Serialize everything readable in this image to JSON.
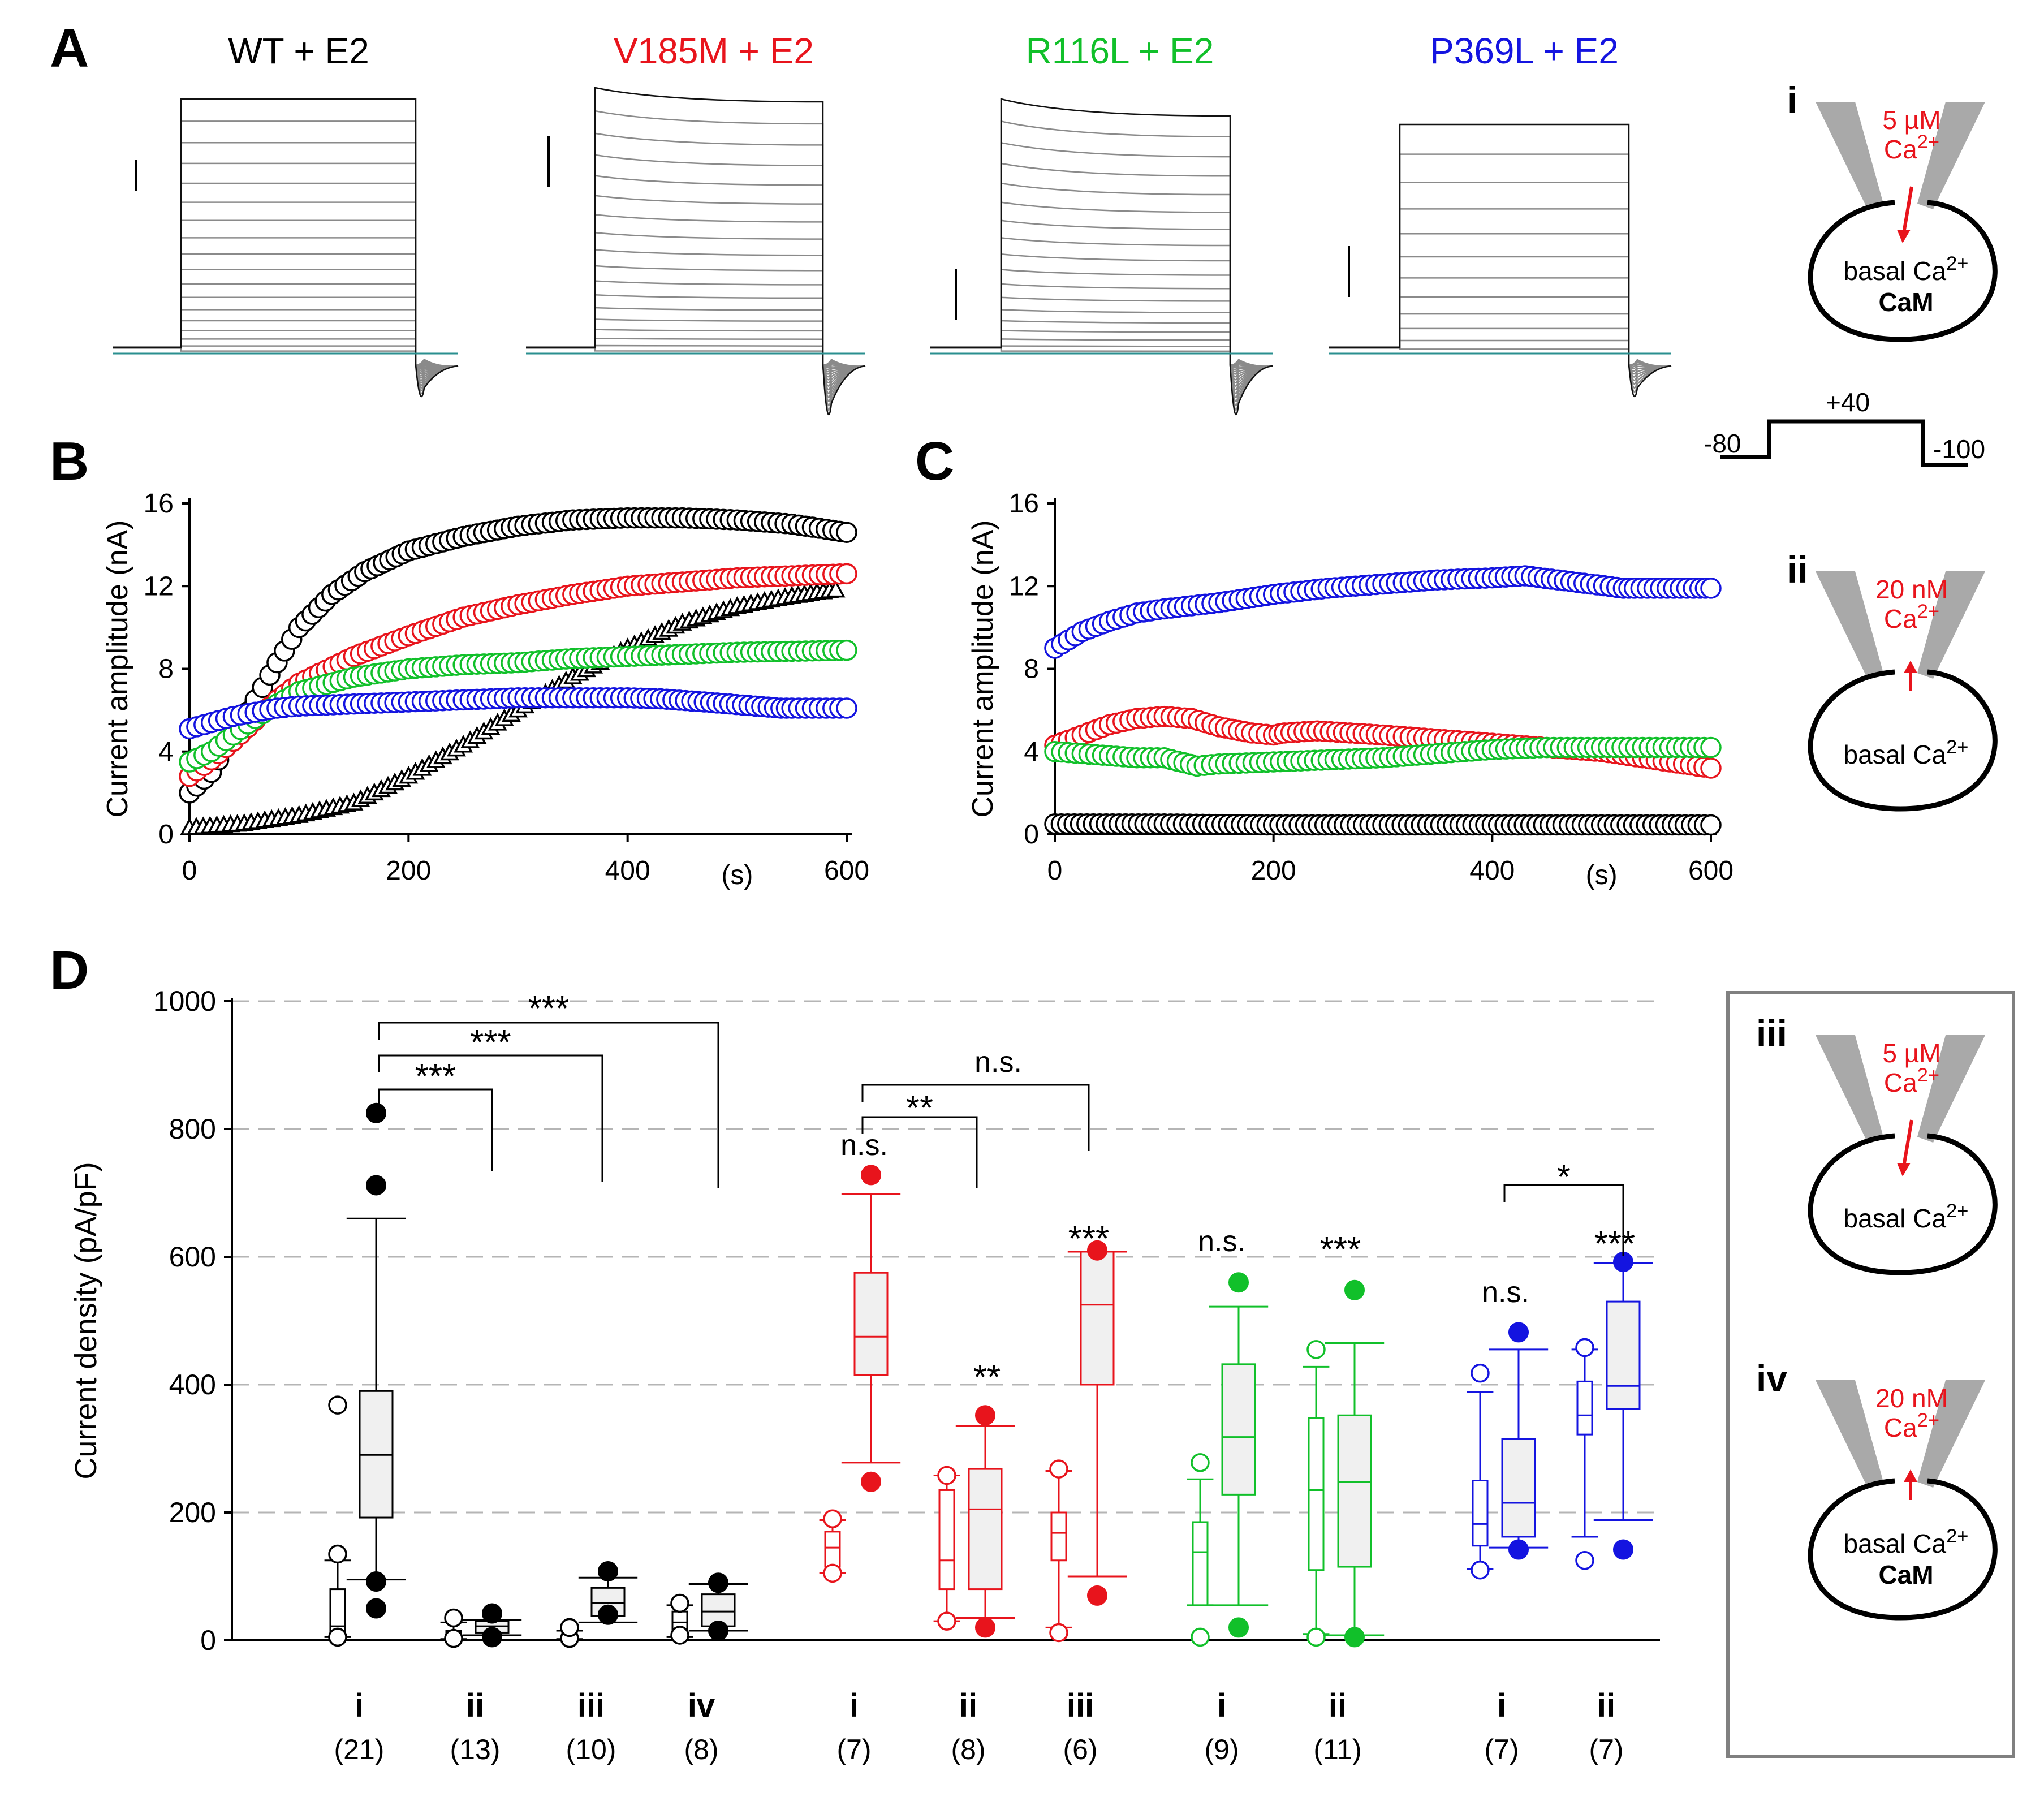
{
  "colors": {
    "wt": "#000000",
    "v185m": "#e8141c",
    "r116l": "#11c02a",
    "p369l": "#1414e0",
    "baseline": "#2a8f8f",
    "trace": "#8a8a8a",
    "pipette": "#a9a9a9",
    "grid": "#b5b5b5"
  },
  "panel_labels": {
    "a": "A",
    "b": "B",
    "c": "C",
    "d": "D"
  },
  "panelA": {
    "titles": [
      "WT + E2",
      "V185M + E2",
      "R116L + E2",
      "P369L + E2"
    ]
  },
  "schematics": {
    "i": {
      "label": "i",
      "conc": "5 µM",
      "ion": "Ca2+",
      "inside": "basal Ca2+",
      "cam": "CaM"
    },
    "ii": {
      "label": "ii",
      "conc": "20 nM",
      "ion": "Ca2+",
      "inside": "basal Ca2+"
    },
    "iii": {
      "label": "iii",
      "conc": "5 µM",
      "ion": "Ca2+",
      "inside": "basal Ca2+"
    },
    "iv": {
      "label": "iv",
      "conc": "20 nM",
      "ion": "Ca2+",
      "inside": "basal Ca2+",
      "cam": "CaM"
    }
  },
  "protocol": {
    "hold": "-80",
    "step": "+40",
    "tail": "-100"
  },
  "chart_data": [
    {
      "panel": "B",
      "type": "scatter",
      "ylabel": "Current amplitude (nA)",
      "xunit": "(s)",
      "xlim": [
        0,
        600
      ],
      "ylim": [
        0,
        16
      ],
      "xticks": [
        "0",
        "200",
        "400",
        "600"
      ],
      "yticks": [
        "0",
        "4",
        "8",
        "12",
        "16"
      ],
      "series": [
        {
          "name": "WT",
          "color": "black",
          "marker": "circle",
          "x": [
            0,
            20,
            40,
            60,
            80,
            100,
            130,
            160,
            200,
            250,
            300,
            350,
            400,
            450,
            500,
            550,
            600
          ],
          "y": [
            2,
            3,
            4.8,
            6.5,
            8.3,
            10,
            11.6,
            12.7,
            13.7,
            14.4,
            14.9,
            15.2,
            15.3,
            15.3,
            15.2,
            15,
            14.6
          ]
        },
        {
          "name": "WT (triangles)",
          "color": "black",
          "marker": "triangle",
          "x": [
            0,
            50,
            100,
            150,
            200,
            250,
            300,
            350,
            400,
            450,
            500,
            550,
            590
          ],
          "y": [
            0.3,
            0.5,
            0.9,
            1.5,
            2.8,
            4.3,
            6,
            7.6,
            9,
            10.2,
            11,
            11.5,
            11.8
          ]
        },
        {
          "name": "V185M",
          "color": "red",
          "marker": "circle",
          "x": [
            0,
            20,
            40,
            60,
            80,
            100,
            150,
            200,
            250,
            300,
            350,
            400,
            450,
            500,
            550,
            600
          ],
          "y": [
            2.8,
            3.6,
            4.5,
            5.5,
            6.5,
            7.3,
            8.6,
            9.6,
            10.5,
            11.1,
            11.6,
            12,
            12.2,
            12.4,
            12.5,
            12.6
          ]
        },
        {
          "name": "R116L",
          "color": "green",
          "marker": "circle",
          "x": [
            0,
            20,
            40,
            60,
            80,
            100,
            150,
            200,
            250,
            300,
            350,
            400,
            450,
            500,
            550,
            600
          ],
          "y": [
            3.5,
            4,
            4.8,
            5.6,
            6.3,
            6.9,
            7.6,
            8,
            8.2,
            8.3,
            8.5,
            8.6,
            8.7,
            8.8,
            8.85,
            8.9
          ]
        },
        {
          "name": "P369L",
          "color": "blue",
          "marker": "circle",
          "x": [
            0,
            20,
            40,
            60,
            80,
            100,
            150,
            200,
            250,
            300,
            350,
            400,
            430,
            470,
            540,
            550,
            600
          ],
          "y": [
            5.1,
            5.4,
            5.7,
            5.9,
            6.1,
            6.2,
            6.3,
            6.4,
            6.5,
            6.6,
            6.6,
            6.6,
            6.55,
            6.4,
            6.1,
            6.1,
            6.1
          ]
        }
      ]
    },
    {
      "panel": "C",
      "type": "scatter",
      "ylabel": "Current amplitude (nA)",
      "xunit": "(s)",
      "xlim": [
        0,
        600
      ],
      "ylim": [
        0,
        16
      ],
      "xticks": [
        "0",
        "200",
        "400",
        "600"
      ],
      "yticks": [
        "0",
        "4",
        "8",
        "12",
        "16"
      ],
      "series": [
        {
          "name": "P369L",
          "color": "blue",
          "marker": "circle",
          "x": [
            0,
            25,
            50,
            75,
            100,
            150,
            200,
            250,
            300,
            350,
            400,
            430,
            520,
            530,
            590,
            600
          ],
          "y": [
            9,
            9.8,
            10.3,
            10.7,
            10.9,
            11.2,
            11.6,
            11.9,
            12.1,
            12.3,
            12.4,
            12.5,
            11.9,
            11.9,
            11.9,
            11.9
          ]
        },
        {
          "name": "V185M",
          "color": "red",
          "marker": "circle",
          "x": [
            0,
            25,
            50,
            75,
            100,
            125,
            150,
            180,
            200,
            210,
            240,
            270,
            300,
            350,
            400,
            450,
            500,
            550,
            600
          ],
          "y": [
            4.3,
            4.8,
            5.3,
            5.6,
            5.7,
            5.6,
            5.2,
            4.9,
            4.8,
            4.9,
            5,
            4.9,
            4.8,
            4.6,
            4.4,
            4.2,
            4,
            3.6,
            3.2
          ]
        },
        {
          "name": "R116L",
          "color": "green",
          "marker": "circle",
          "x": [
            0,
            25,
            50,
            75,
            100,
            130,
            150,
            200,
            250,
            300,
            350,
            400,
            450,
            500,
            550,
            600
          ],
          "y": [
            4,
            3.9,
            3.8,
            3.7,
            3.7,
            3.3,
            3.4,
            3.5,
            3.6,
            3.7,
            3.9,
            4.1,
            4.2,
            4.2,
            4.2,
            4.2
          ]
        },
        {
          "name": "WT",
          "color": "black",
          "marker": "circle",
          "x": [
            0,
            100,
            200,
            300,
            400,
            500,
            600
          ],
          "y": [
            0.5,
            0.5,
            0.45,
            0.45,
            0.45,
            0.45,
            0.45
          ]
        }
      ]
    },
    {
      "panel": "D",
      "type": "box",
      "ylabel": "Current density (pA/pF)",
      "ylim": [
        0,
        1000
      ],
      "yticks": [
        "0",
        "200",
        "400",
        "600",
        "800",
        "1000"
      ],
      "groups": [
        {
          "color": "black",
          "label": "i",
          "n": "(21)",
          "box_left": {
            "min": 5,
            "q1": 5,
            "median": 22,
            "q3": 80,
            "max": 125,
            "out_low": 5,
            "out_high": [
              135,
              368
            ]
          },
          "box_right": {
            "min": 95,
            "q1": 192,
            "median": 290,
            "q3": 390,
            "max": 660,
            "out_low": [
              50,
              92
            ],
            "out_high": [
              712,
              825
            ]
          }
        },
        {
          "color": "black",
          "label": "ii",
          "n": "(13)",
          "box_left": {
            "min": 2,
            "q1": 2,
            "median": 8,
            "q3": 15,
            "max": 28,
            "out_low": 3,
            "out_high": [
              35
            ]
          },
          "box_right": {
            "min": 8,
            "q1": 12,
            "median": 22,
            "q3": 30,
            "max": 32,
            "out_low": [
              5
            ],
            "out_high": [
              42
            ]
          }
        },
        {
          "color": "black",
          "label": "iii",
          "n": "(10)",
          "box_left": {
            "min": 2,
            "q1": 2,
            "median": 6,
            "q3": 12,
            "max": 15,
            "out_low": 3,
            "out_high": [
              20
            ]
          },
          "box_right": {
            "min": 28,
            "q1": 38,
            "median": 58,
            "q3": 82,
            "max": 98,
            "out_low": [
              40
            ],
            "out_high": [
              108
            ]
          }
        },
        {
          "color": "black",
          "label": "iv",
          "n": "(8)",
          "box_left": {
            "min": 5,
            "q1": 10,
            "median": 28,
            "q3": 45,
            "max": 55,
            "out_low": 8,
            "out_high": [
              58
            ]
          },
          "box_right": {
            "min": 15,
            "q1": 22,
            "median": 45,
            "q3": 72,
            "max": 88,
            "out_low": [
              15
            ],
            "out_high": [
              90
            ]
          }
        },
        {
          "color": "red",
          "label": "i",
          "n": "(7)",
          "box_left": {
            "min": 105,
            "q1": 115,
            "median": 145,
            "q3": 170,
            "max": 188,
            "out_low": 105,
            "out_high": [
              190
            ]
          },
          "box_right": {
            "min": 278,
            "q1": 415,
            "median": 475,
            "q3": 575,
            "max": 698,
            "out_low": [
              248
            ],
            "out_high": [
              728
            ]
          }
        },
        {
          "color": "red",
          "label": "ii",
          "n": "(8)",
          "box_left": {
            "min": 30,
            "q1": 80,
            "median": 125,
            "q3": 235,
            "max": 258,
            "out_low": 30,
            "out_high": [
              258
            ]
          },
          "box_right": {
            "min": 35,
            "q1": 80,
            "median": 205,
            "q3": 268,
            "max": 335,
            "out_low": [
              20
            ],
            "out_high": [
              352
            ]
          }
        },
        {
          "color": "red",
          "label": "iii",
          "n": "(6)",
          "box_left": {
            "min": 20,
            "q1": 125,
            "median": 168,
            "q3": 200,
            "max": 265,
            "out_low": 12,
            "out_high": [
              268
            ]
          },
          "box_right": {
            "min": 100,
            "q1": 400,
            "median": 525,
            "q3": 608,
            "max": 608,
            "out_low": [
              70
            ],
            "out_high": [
              610
            ]
          }
        },
        {
          "color": "green",
          "label": "i",
          "n": "(9)",
          "box_left": {
            "min": 55,
            "q1": 55,
            "median": 138,
            "q3": 185,
            "max": 252,
            "out_low": 5,
            "out_high": [
              278
            ]
          },
          "box_right": {
            "min": 55,
            "q1": 228,
            "median": 318,
            "q3": 432,
            "max": 522,
            "out_low": [
              20
            ],
            "out_high": [
              560
            ]
          }
        },
        {
          "color": "green",
          "label": "ii",
          "n": "(11)",
          "box_left": {
            "min": 10,
            "q1": 110,
            "median": 235,
            "q3": 348,
            "max": 428,
            "out_low": 5,
            "out_high": [
              455
            ]
          },
          "box_right": {
            "min": 8,
            "q1": 115,
            "median": 248,
            "q3": 352,
            "max": 465,
            "out_low": [
              5
            ],
            "out_high": [
              548
            ]
          }
        },
        {
          "color": "blue",
          "label": "i",
          "n": "(7)",
          "box_left": {
            "min": 112,
            "q1": 148,
            "median": 182,
            "q3": 250,
            "max": 388,
            "out_low": 110,
            "out_high": [
              418
            ]
          },
          "box_right": {
            "min": 145,
            "q1": 162,
            "median": 215,
            "q3": 315,
            "max": 455,
            "out_low": [
              142
            ],
            "out_high": [
              482
            ]
          }
        },
        {
          "color": "blue",
          "label": "ii",
          "n": "(7)",
          "box_left": {
            "min": 162,
            "q1": 322,
            "median": 352,
            "q3": 405,
            "max": 455,
            "out_low": 125,
            "out_high": [
              458
            ]
          },
          "box_right": {
            "min": 188,
            "q1": 362,
            "median": 398,
            "q3": 530,
            "max": 590,
            "out_low": [
              142
            ],
            "out_high": [
              592
            ]
          }
        }
      ],
      "significance": [
        {
          "text": "***",
          "from_group": 0,
          "to_group": 1
        },
        {
          "text": "***",
          "from_group": 0,
          "to_group": 2
        },
        {
          "text": "***",
          "from_group": 0,
          "to_group": 3
        },
        {
          "text": "**",
          "from_group": 4,
          "to_group": 5
        },
        {
          "text": "n.s.",
          "from_group": 4,
          "to_group": 6
        },
        {
          "text": "*",
          "from_group": 9,
          "to_group": 10
        }
      ],
      "star_labels": [
        {
          "text": "n.s.",
          "group": 4
        },
        {
          "text": "**",
          "group": 5
        },
        {
          "text": "***",
          "group": 6
        },
        {
          "text": "n.s.",
          "group": 7
        },
        {
          "text": "***",
          "group": 8
        },
        {
          "text": "n.s.",
          "group": 9
        },
        {
          "text": "***",
          "group": 10
        }
      ]
    }
  ]
}
